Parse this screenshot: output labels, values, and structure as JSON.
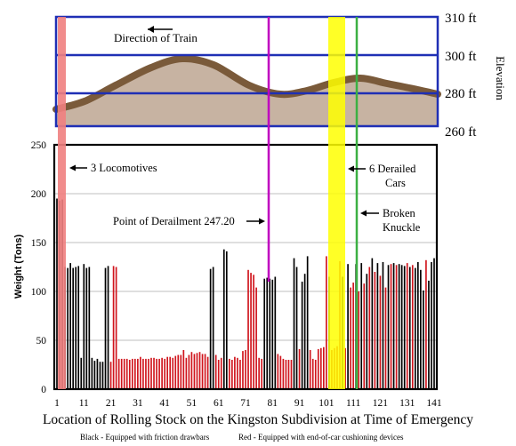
{
  "chart_data": [
    {
      "type": "area",
      "ylabel": "Elevation",
      "y_ticks": [
        "310 ft",
        "300 ft",
        "280 ft",
        "260 ft"
      ],
      "annotation": "Direction of Train",
      "colors": {
        "border": "#1f2fb5",
        "ground": "#c7b3a2",
        "rail": "#7a5a3a"
      }
    },
    {
      "type": "bar",
      "ylabel": "Weight (Tons)",
      "xlabel": "Location of Rolling Stock on the Kingston Subdivision at Time of Emergency",
      "ylim": [
        0,
        250
      ],
      "xlim": [
        1,
        141
      ],
      "y_ticks": [
        0,
        50,
        100,
        150,
        200,
        250
      ],
      "x_ticks": [
        1,
        11,
        21,
        31,
        41,
        51,
        61,
        71,
        81,
        91,
        101,
        111,
        121,
        131,
        141
      ],
      "grid": true,
      "annotations": [
        "3 Locomotives",
        "Point of Derailment 247.20",
        "6 Derailed",
        "Cars",
        "Broken",
        "Knuckle"
      ],
      "legend": [
        "Black - Equipped with friction drawbars",
        "Red - Equipped with end-of-car cushioning devices"
      ],
      "colors": {
        "friction": "#000000",
        "cushion": "#d0141c",
        "locomotives": "#f08080",
        "derailed": "#ffff00",
        "derailment_point": "#c000c0",
        "knuckle": "#3cb043"
      },
      "values": [
        195,
        193,
        194,
        125,
        124,
        129,
        124,
        125,
        126,
        32,
        128,
        124,
        125,
        32,
        29,
        31,
        28,
        28,
        124,
        126,
        28,
        126,
        125,
        31,
        31,
        31,
        31,
        30,
        31,
        31,
        31,
        33,
        31,
        31,
        31,
        32,
        32,
        31,
        31,
        32,
        31,
        33,
        33,
        32,
        34,
        35,
        35,
        40,
        32,
        35,
        38,
        36,
        37,
        38,
        36,
        36,
        33,
        123,
        125,
        35,
        30,
        32,
        143,
        141,
        31,
        30,
        33,
        32,
        30,
        39,
        40,
        122,
        119,
        117,
        104,
        32,
        31,
        113,
        114,
        113,
        112,
        115,
        36,
        34,
        31,
        30,
        30,
        30,
        134,
        125,
        41,
        110,
        118,
        136,
        40,
        31,
        30,
        41,
        42,
        43,
        136,
        115,
        40,
        42,
        44,
        131,
        115,
        42,
        128,
        104,
        109,
        128,
        100,
        129,
        108,
        118,
        125,
        134,
        120,
        129,
        116,
        130,
        104,
        127,
        128,
        129,
        127,
        128,
        127,
        126,
        129,
        125,
        127,
        124,
        130,
        122,
        101,
        132,
        111,
        130,
        134
      ],
      "types": [
        "L",
        "L",
        "L",
        "B",
        "B",
        "B",
        "B",
        "B",
        "B",
        "B",
        "B",
        "B",
        "B",
        "B",
        "B",
        "B",
        "B",
        "B",
        "B",
        "B",
        "R",
        "R",
        "R",
        "R",
        "R",
        "R",
        "R",
        "R",
        "R",
        "R",
        "R",
        "R",
        "R",
        "R",
        "R",
        "R",
        "R",
        "R",
        "R",
        "R",
        "R",
        "R",
        "R",
        "R",
        "R",
        "R",
        "R",
        "R",
        "R",
        "R",
        "R",
        "R",
        "R",
        "R",
        "R",
        "R",
        "R",
        "B",
        "B",
        "R",
        "R",
        "R",
        "B",
        "B",
        "R",
        "R",
        "R",
        "R",
        "R",
        "R",
        "R",
        "R",
        "R",
        "R",
        "R",
        "R",
        "R",
        "B",
        "B",
        "B",
        "B",
        "B",
        "R",
        "R",
        "R",
        "R",
        "R",
        "R",
        "B",
        "B",
        "R",
        "B",
        "B",
        "B",
        "R",
        "R",
        "R",
        "R",
        "R",
        "R",
        "R",
        "B",
        "R",
        "R",
        "R",
        "R",
        "B",
        "R",
        "B",
        "R",
        "R",
        "B",
        "R",
        "B",
        "R",
        "B",
        "R",
        "B",
        "R",
        "B",
        "R",
        "B",
        "R",
        "B",
        "R",
        "B",
        "R",
        "B",
        "B",
        "B",
        "R",
        "B",
        "R",
        "B",
        "B",
        "B",
        "B",
        "R",
        "B",
        "B",
        "B"
      ]
    }
  ]
}
